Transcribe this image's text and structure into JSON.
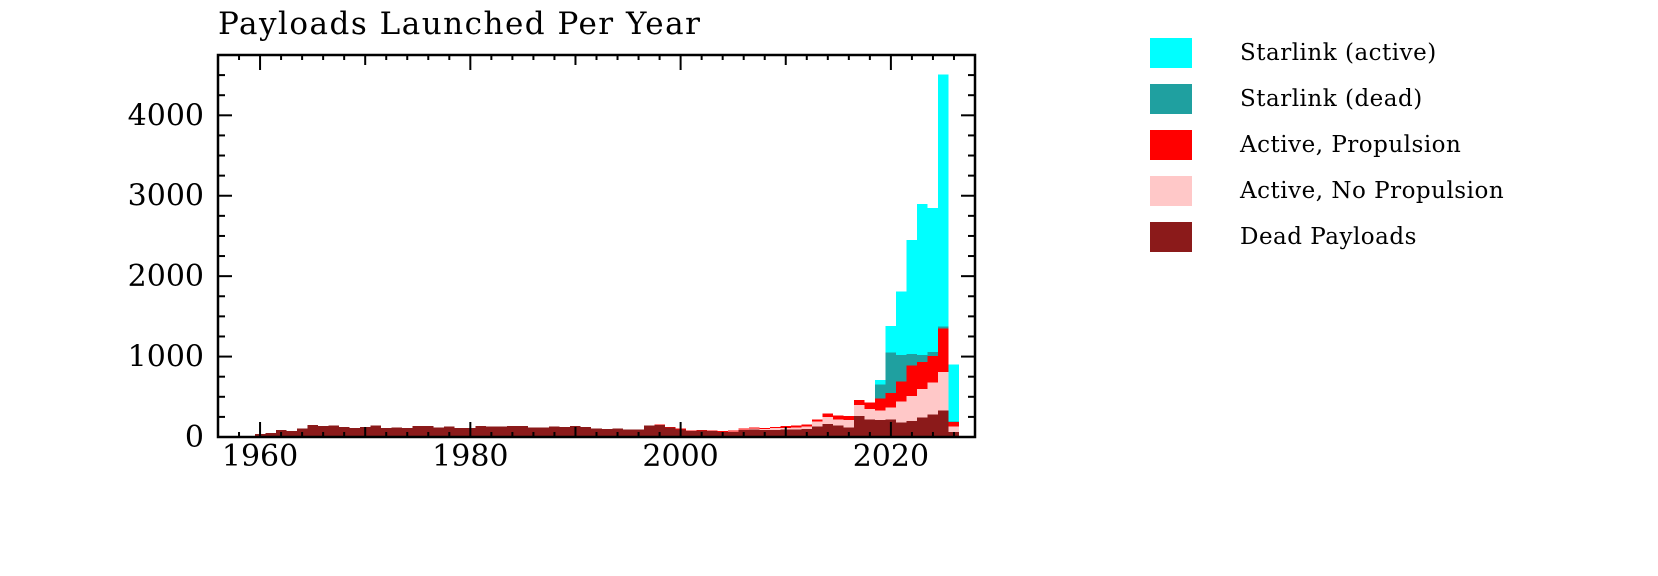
{
  "page": {
    "background": "#ffffff"
  },
  "chart_data": {
    "type": "bar",
    "stacked": true,
    "title": "Payloads Launched Per Year",
    "xlabel": "",
    "ylabel": "",
    "xlim": [
      1956,
      2028
    ],
    "ylim": [
      0,
      4750
    ],
    "y_major_step": 1000,
    "y_minor_step": 250,
    "x_major_step": 20,
    "x_minor_step": 2,
    "x_tick_labels": [
      "1960",
      "1980",
      "2000",
      "2020"
    ],
    "y_tick_labels": [
      "0",
      "1000",
      "2000",
      "3000",
      "4000"
    ],
    "grid": false,
    "legend_position": "right-outside",
    "axis_color": "#000000",
    "years": [
      1957,
      1958,
      1959,
      1960,
      1961,
      1962,
      1963,
      1964,
      1965,
      1966,
      1967,
      1968,
      1969,
      1970,
      1971,
      1972,
      1973,
      1974,
      1975,
      1976,
      1977,
      1978,
      1979,
      1980,
      1981,
      1982,
      1983,
      1984,
      1985,
      1986,
      1987,
      1988,
      1989,
      1990,
      1991,
      1992,
      1993,
      1994,
      1995,
      1996,
      1997,
      1998,
      1999,
      2000,
      2001,
      2002,
      2003,
      2004,
      2005,
      2006,
      2007,
      2008,
      2009,
      2010,
      2011,
      2012,
      2013,
      2014,
      2015,
      2016,
      2017,
      2018,
      2019,
      2020,
      2021,
      2022,
      2023,
      2024,
      2025,
      2026
    ],
    "series": [
      {
        "name": "Dead Payloads",
        "color": "#8b1a1a",
        "values": [
          3,
          8,
          15,
          40,
          50,
          85,
          75,
          105,
          150,
          135,
          145,
          125,
          115,
          125,
          140,
          115,
          120,
          115,
          135,
          135,
          120,
          130,
          110,
          115,
          135,
          130,
          130,
          135,
          135,
          120,
          120,
          130,
          125,
          135,
          125,
          105,
          100,
          105,
          95,
          95,
          140,
          150,
          120,
          95,
          75,
          80,
          75,
          65,
          65,
          85,
          95,
          85,
          90,
          95,
          95,
          100,
          130,
          160,
          140,
          120,
          260,
          220,
          210,
          220,
          180,
          200,
          240,
          280,
          330,
          60
        ]
      },
      {
        "name": "Active, No Propulsion",
        "color": "#ffc8c8",
        "values": [
          0,
          0,
          0,
          0,
          0,
          0,
          0,
          0,
          0,
          0,
          0,
          0,
          0,
          0,
          0,
          0,
          0,
          0,
          0,
          0,
          0,
          0,
          0,
          0,
          0,
          0,
          0,
          0,
          0,
          0,
          0,
          0,
          0,
          0,
          0,
          0,
          0,
          0,
          0,
          0,
          0,
          0,
          0,
          0,
          0,
          0,
          0,
          0,
          5,
          10,
          10,
          15,
          20,
          20,
          25,
          30,
          60,
          90,
          80,
          90,
          140,
          130,
          120,
          150,
          260,
          310,
          360,
          400,
          480,
          70
        ]
      },
      {
        "name": "Active, Propulsion",
        "color": "#ff0000",
        "values": [
          0,
          0,
          0,
          0,
          0,
          0,
          0,
          0,
          0,
          0,
          0,
          0,
          0,
          0,
          0,
          0,
          0,
          0,
          0,
          0,
          0,
          0,
          0,
          0,
          0,
          0,
          0,
          0,
          0,
          0,
          0,
          0,
          0,
          0,
          0,
          0,
          0,
          0,
          0,
          0,
          0,
          5,
          5,
          8,
          5,
          5,
          5,
          8,
          8,
          10,
          12,
          15,
          15,
          20,
          20,
          25,
          30,
          40,
          45,
          50,
          60,
          80,
          150,
          180,
          250,
          380,
          330,
          330,
          540,
          60
        ]
      },
      {
        "name": "Starlink (dead)",
        "color": "#1fa0a0",
        "values": [
          0,
          0,
          0,
          0,
          0,
          0,
          0,
          0,
          0,
          0,
          0,
          0,
          0,
          0,
          0,
          0,
          0,
          0,
          0,
          0,
          0,
          0,
          0,
          0,
          0,
          0,
          0,
          0,
          0,
          0,
          0,
          0,
          0,
          0,
          0,
          0,
          0,
          0,
          0,
          0,
          0,
          0,
          0,
          0,
          0,
          0,
          0,
          0,
          0,
          0,
          0,
          0,
          0,
          0,
          0,
          0,
          0,
          0,
          0,
          0,
          0,
          0,
          170,
          500,
          330,
          140,
          90,
          50,
          25,
          3
        ]
      },
      {
        "name": "Starlink (active)",
        "color": "#00ffff",
        "values": [
          0,
          0,
          0,
          0,
          0,
          0,
          0,
          0,
          0,
          0,
          0,
          0,
          0,
          0,
          0,
          0,
          0,
          0,
          0,
          0,
          0,
          0,
          0,
          0,
          0,
          0,
          0,
          0,
          0,
          0,
          0,
          0,
          0,
          0,
          0,
          0,
          0,
          0,
          0,
          0,
          0,
          0,
          0,
          0,
          0,
          0,
          0,
          0,
          0,
          0,
          0,
          0,
          0,
          0,
          0,
          0,
          0,
          0,
          0,
          0,
          0,
          0,
          60,
          330,
          790,
          1420,
          1880,
          1790,
          3130,
          710
        ]
      }
    ],
    "legend": [
      {
        "label": "Starlink (active)",
        "color": "#00ffff"
      },
      {
        "label": "Starlink (dead)",
        "color": "#1fa0a0"
      },
      {
        "label": "Active, Propulsion",
        "color": "#ff0000"
      },
      {
        "label": "Active, No Propulsion",
        "color": "#ffc8c8"
      },
      {
        "label": "Dead Payloads",
        "color": "#8b1a1a"
      }
    ]
  }
}
